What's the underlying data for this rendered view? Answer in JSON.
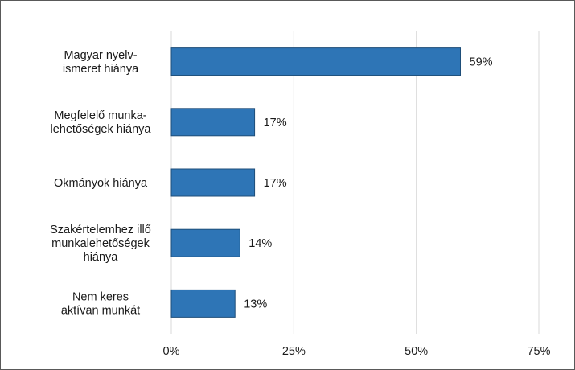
{
  "chart_data": {
    "type": "bar",
    "orientation": "horizontal",
    "categories": [
      [
        "Magyar nyelv-",
        "ismeret hiánya"
      ],
      [
        "Megfelelő munka-",
        "lehetőségek hiánya"
      ],
      [
        "Okmányok hiánya"
      ],
      [
        "Szakértelemhez illő",
        "munkalehetőségek",
        "hiánya"
      ],
      [
        "Nem keres",
        "aktívan munkát"
      ]
    ],
    "values": [
      59,
      17,
      17,
      14,
      13
    ],
    "data_labels": [
      "59%",
      "17%",
      "17%",
      "14%",
      "13%"
    ],
    "x_ticks": [
      0,
      25,
      50,
      75
    ],
    "x_tick_labels": [
      "0%",
      "25%",
      "50%",
      "75%"
    ],
    "xlim": [
      0,
      75
    ],
    "grid": "vertical",
    "bar_color": "#2e75b6",
    "bar_edge_color": "#1f4e79",
    "grid_color": "#d9d9d9"
  }
}
